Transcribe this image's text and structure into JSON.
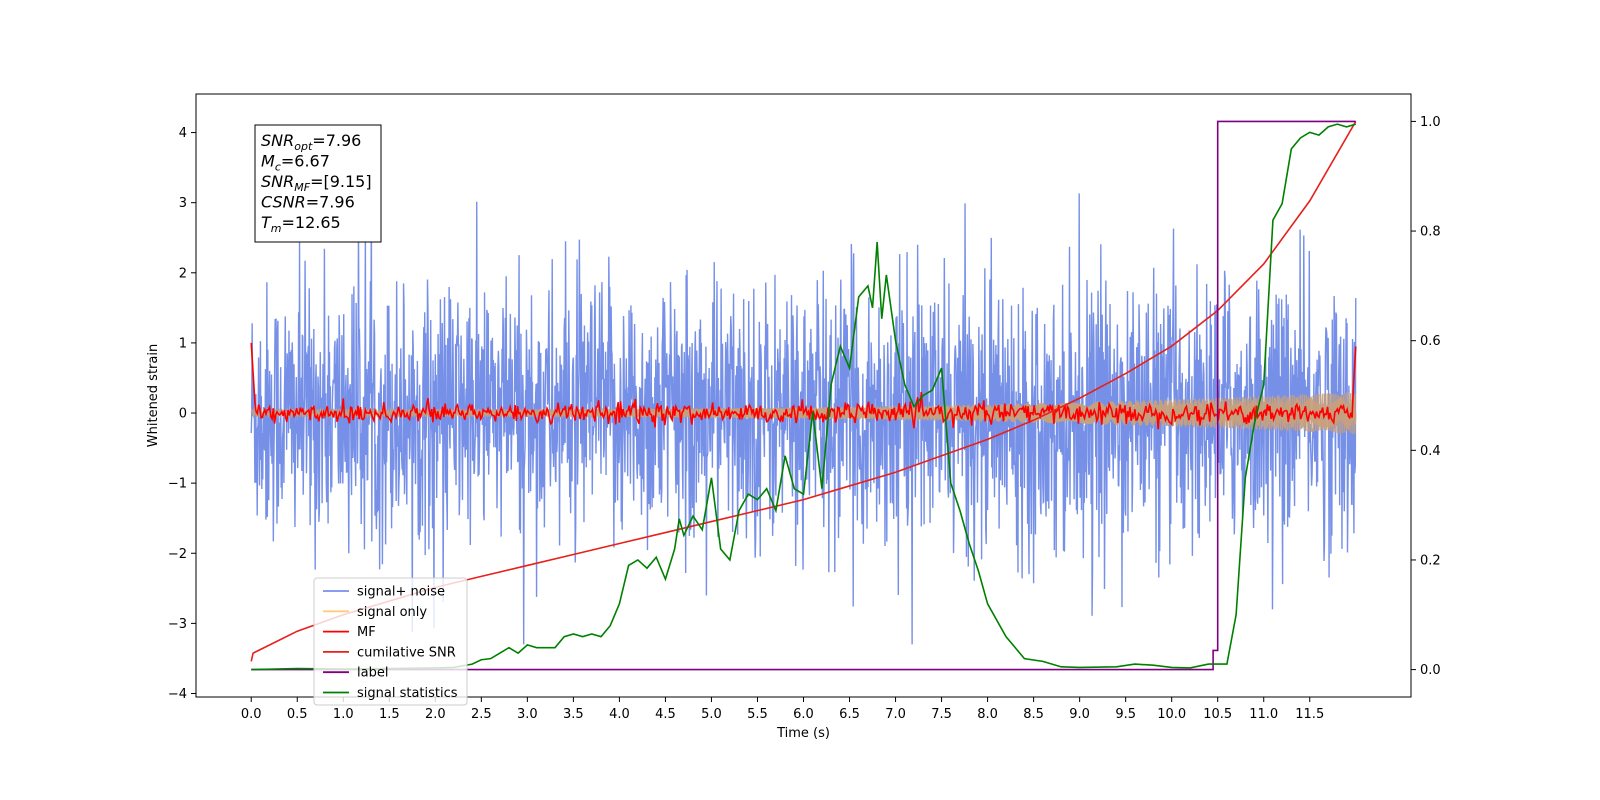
{
  "chart_data": {
    "type": "line",
    "xlabel": "Time (s)",
    "ylabel": "Whitened strain",
    "ylabel_right": "",
    "xlim": [
      -0.6,
      12.6
    ],
    "ylim": [
      -4.05,
      4.55
    ],
    "ylim_right": [
      -0.05,
      1.05
    ],
    "x_ticks": [
      "0.0",
      "0.5",
      "1.0",
      "1.5",
      "2.0",
      "2.5",
      "3.0",
      "3.5",
      "4.0",
      "4.5",
      "5.0",
      "5.5",
      "6.0",
      "6.5",
      "7.0",
      "7.5",
      "8.0",
      "8.5",
      "9.0",
      "9.5",
      "10.0",
      "10.5",
      "11.0",
      "11.5"
    ],
    "y_ticks": [
      "4",
      "3",
      "2",
      "1",
      "0",
      "−1",
      "−2",
      "−3",
      "−4"
    ],
    "y_ticks_right": [
      "1.0",
      "0.8",
      "0.6",
      "0.4",
      "0.2",
      "0.0"
    ],
    "grid": false,
    "legend_position": "lower-left",
    "annotation": {
      "lines": [
        {
          "main": "SNR",
          "sub": "opt",
          "value": "=7.96"
        },
        {
          "main": "M",
          "sub": "c",
          "value": "=6.67"
        },
        {
          "main": "SNR",
          "sub": "MF",
          "value": "=[9.15]"
        },
        {
          "main": "CSNR",
          "sub": "",
          "value": "=7.96"
        },
        {
          "main": "T",
          "sub": "m",
          "value": "=12.65"
        }
      ]
    },
    "series": [
      {
        "name": "signal+ noise",
        "color": "#7690e8",
        "axis": "left",
        "kind": "noise",
        "noise_band": [
          -2.9,
          2.4
        ],
        "x_range": [
          0.0,
          12.0
        ]
      },
      {
        "name": "signal only",
        "color": "#ffb347",
        "axis": "left",
        "kind": "chirp",
        "amplitude_start": 0.05,
        "amplitude_end": 0.3,
        "x_range": [
          0.0,
          12.0
        ]
      },
      {
        "name": "MF",
        "color": "#ff0000",
        "axis": "left",
        "kind": "mf",
        "amplitude": 0.12,
        "x_range": [
          0.0,
          12.0
        ]
      },
      {
        "name": "cumilative SNR",
        "color": "#e8201a",
        "axis": "right",
        "x": [
          0.0,
          0.02,
          0.5,
          1.0,
          1.5,
          2.0,
          2.5,
          3.0,
          3.5,
          4.0,
          4.5,
          5.0,
          5.5,
          6.0,
          6.5,
          7.0,
          7.5,
          8.0,
          8.5,
          9.0,
          9.5,
          10.0,
          10.5,
          11.0,
          11.5,
          12.0
        ],
        "y": [
          0.015,
          0.03,
          0.07,
          0.1,
          0.125,
          0.15,
          0.17,
          0.19,
          0.21,
          0.23,
          0.25,
          0.27,
          0.29,
          0.31,
          0.335,
          0.36,
          0.39,
          0.42,
          0.455,
          0.495,
          0.54,
          0.59,
          0.655,
          0.74,
          0.855,
          1.0
        ]
      },
      {
        "name": "label",
        "color": "#7f0080",
        "axis": "right",
        "x": [
          0.0,
          10.45,
          10.45,
          10.5,
          10.5,
          12.0
        ],
        "y": [
          0.0,
          0.0,
          0.035,
          0.035,
          1.0,
          1.0
        ]
      },
      {
        "name": "signal statistics",
        "color": "#008000",
        "axis": "right",
        "x": [
          0.0,
          0.5,
          1.0,
          1.5,
          2.0,
          2.2,
          2.4,
          2.5,
          2.6,
          2.7,
          2.8,
          2.9,
          3.0,
          3.1,
          3.3,
          3.4,
          3.5,
          3.6,
          3.7,
          3.8,
          3.9,
          4.0,
          4.1,
          4.2,
          4.3,
          4.4,
          4.5,
          4.6,
          4.65,
          4.7,
          4.8,
          4.9,
          5.0,
          5.1,
          5.2,
          5.3,
          5.4,
          5.5,
          5.6,
          5.7,
          5.8,
          5.9,
          6.0,
          6.1,
          6.2,
          6.3,
          6.4,
          6.5,
          6.6,
          6.7,
          6.75,
          6.8,
          6.85,
          6.9,
          7.0,
          7.1,
          7.2,
          7.3,
          7.4,
          7.5,
          7.6,
          7.7,
          7.8,
          7.9,
          8.0,
          8.2,
          8.4,
          8.6,
          8.8,
          9.0,
          9.4,
          9.6,
          9.8,
          10.0,
          10.2,
          10.4,
          10.6,
          10.7,
          10.8,
          10.9,
          11.0,
          11.1,
          11.2,
          11.3,
          11.4,
          11.5,
          11.6,
          11.7,
          11.8,
          11.9,
          12.0
        ],
        "y": [
          0.0,
          0.002,
          0.001,
          0.002,
          0.003,
          0.004,
          0.01,
          0.018,
          0.02,
          0.03,
          0.04,
          0.03,
          0.045,
          0.04,
          0.04,
          0.06,
          0.065,
          0.06,
          0.065,
          0.06,
          0.08,
          0.12,
          0.19,
          0.2,
          0.185,
          0.205,
          0.165,
          0.22,
          0.275,
          0.245,
          0.28,
          0.255,
          0.35,
          0.22,
          0.2,
          0.29,
          0.32,
          0.31,
          0.33,
          0.29,
          0.39,
          0.33,
          0.32,
          0.47,
          0.33,
          0.52,
          0.59,
          0.55,
          0.68,
          0.7,
          0.66,
          0.78,
          0.64,
          0.72,
          0.6,
          0.52,
          0.48,
          0.5,
          0.51,
          0.55,
          0.34,
          0.29,
          0.23,
          0.18,
          0.12,
          0.06,
          0.02,
          0.015,
          0.005,
          0.004,
          0.005,
          0.01,
          0.008,
          0.004,
          0.003,
          0.01,
          0.01,
          0.1,
          0.35,
          0.45,
          0.52,
          0.82,
          0.85,
          0.95,
          0.97,
          0.98,
          0.975,
          0.99,
          0.995,
          0.99,
          0.995
        ]
      }
    ]
  }
}
